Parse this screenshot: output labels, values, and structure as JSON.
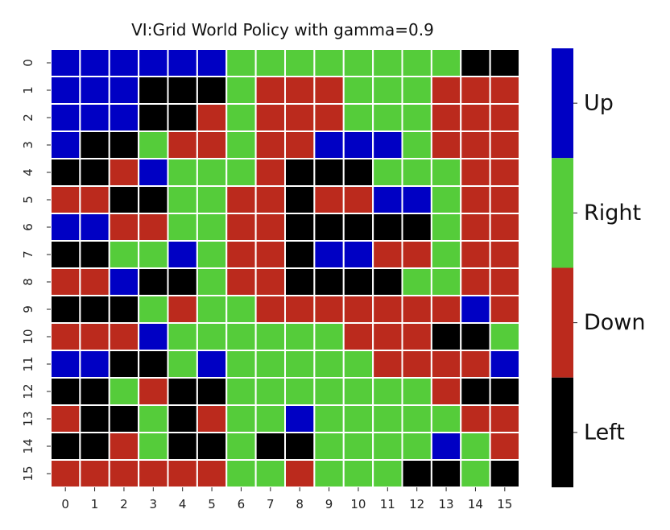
{
  "chart_data": {
    "type": "heatmap",
    "title": "VI:Grid World Policy with gamma=0.9",
    "xlabel": "",
    "ylabel": "",
    "x_tick_labels": [
      "0",
      "1",
      "2",
      "3",
      "4",
      "5",
      "6",
      "7",
      "8",
      "9",
      "10",
      "11",
      "12",
      "13",
      "14",
      "15"
    ],
    "y_tick_labels": [
      "0",
      "1",
      "2",
      "3",
      "4",
      "5",
      "6",
      "7",
      "8",
      "9",
      "10",
      "11",
      "12",
      "13",
      "14",
      "15"
    ],
    "action_codes": {
      "U": "Up",
      "R": "Right",
      "D": "Down",
      "L": "Left"
    },
    "colors": {
      "U": "#0000c4",
      "R": "#55cc3a",
      "D": "#bb2a1d",
      "L": "#000000",
      "gridline": "#ffffff"
    },
    "colorbar": {
      "position": "right",
      "labels_top_to_bottom": [
        "Up",
        "Right",
        "Down",
        "Left"
      ],
      "codes_top_to_bottom": [
        "U",
        "R",
        "D",
        "L"
      ]
    },
    "grid": [
      [
        "U",
        "U",
        "U",
        "U",
        "U",
        "U",
        "R",
        "R",
        "R",
        "R",
        "R",
        "R",
        "R",
        "R",
        "L",
        "L"
      ],
      [
        "U",
        "U",
        "U",
        "L",
        "L",
        "L",
        "R",
        "D",
        "D",
        "D",
        "R",
        "R",
        "R",
        "D",
        "D",
        "D"
      ],
      [
        "U",
        "U",
        "U",
        "L",
        "L",
        "D",
        "R",
        "D",
        "D",
        "D",
        "R",
        "R",
        "R",
        "D",
        "D",
        "D"
      ],
      [
        "U",
        "L",
        "L",
        "R",
        "D",
        "D",
        "R",
        "D",
        "D",
        "U",
        "U",
        "U",
        "R",
        "D",
        "D",
        "D"
      ],
      [
        "L",
        "L",
        "D",
        "U",
        "R",
        "R",
        "R",
        "D",
        "L",
        "L",
        "L",
        "R",
        "R",
        "R",
        "D",
        "D"
      ],
      [
        "D",
        "D",
        "L",
        "L",
        "R",
        "R",
        "D",
        "D",
        "L",
        "D",
        "D",
        "U",
        "U",
        "R",
        "D",
        "D"
      ],
      [
        "U",
        "U",
        "D",
        "D",
        "R",
        "R",
        "D",
        "D",
        "L",
        "L",
        "L",
        "L",
        "L",
        "R",
        "D",
        "D"
      ],
      [
        "L",
        "L",
        "R",
        "R",
        "U",
        "R",
        "D",
        "D",
        "L",
        "U",
        "U",
        "D",
        "D",
        "R",
        "D",
        "D"
      ],
      [
        "D",
        "D",
        "U",
        "L",
        "L",
        "R",
        "D",
        "D",
        "L",
        "L",
        "L",
        "L",
        "R",
        "R",
        "D",
        "D"
      ],
      [
        "L",
        "L",
        "L",
        "R",
        "D",
        "R",
        "R",
        "D",
        "D",
        "D",
        "D",
        "D",
        "D",
        "D",
        "U",
        "D"
      ],
      [
        "D",
        "D",
        "D",
        "U",
        "R",
        "R",
        "R",
        "R",
        "R",
        "R",
        "D",
        "D",
        "D",
        "L",
        "L",
        "R"
      ],
      [
        "U",
        "U",
        "L",
        "L",
        "R",
        "U",
        "R",
        "R",
        "R",
        "R",
        "R",
        "D",
        "D",
        "D",
        "D",
        "U"
      ],
      [
        "L",
        "L",
        "R",
        "D",
        "L",
        "L",
        "R",
        "R",
        "R",
        "R",
        "R",
        "R",
        "R",
        "D",
        "L",
        "L"
      ],
      [
        "D",
        "L",
        "L",
        "R",
        "L",
        "D",
        "R",
        "R",
        "U",
        "R",
        "R",
        "R",
        "R",
        "R",
        "D",
        "D"
      ],
      [
        "L",
        "L",
        "D",
        "R",
        "L",
        "L",
        "R",
        "L",
        "L",
        "R",
        "R",
        "R",
        "R",
        "U",
        "R",
        "D"
      ],
      [
        "D",
        "D",
        "D",
        "D",
        "D",
        "D",
        "R",
        "R",
        "D",
        "R",
        "R",
        "R",
        "L",
        "L",
        "R",
        "L"
      ]
    ]
  }
}
